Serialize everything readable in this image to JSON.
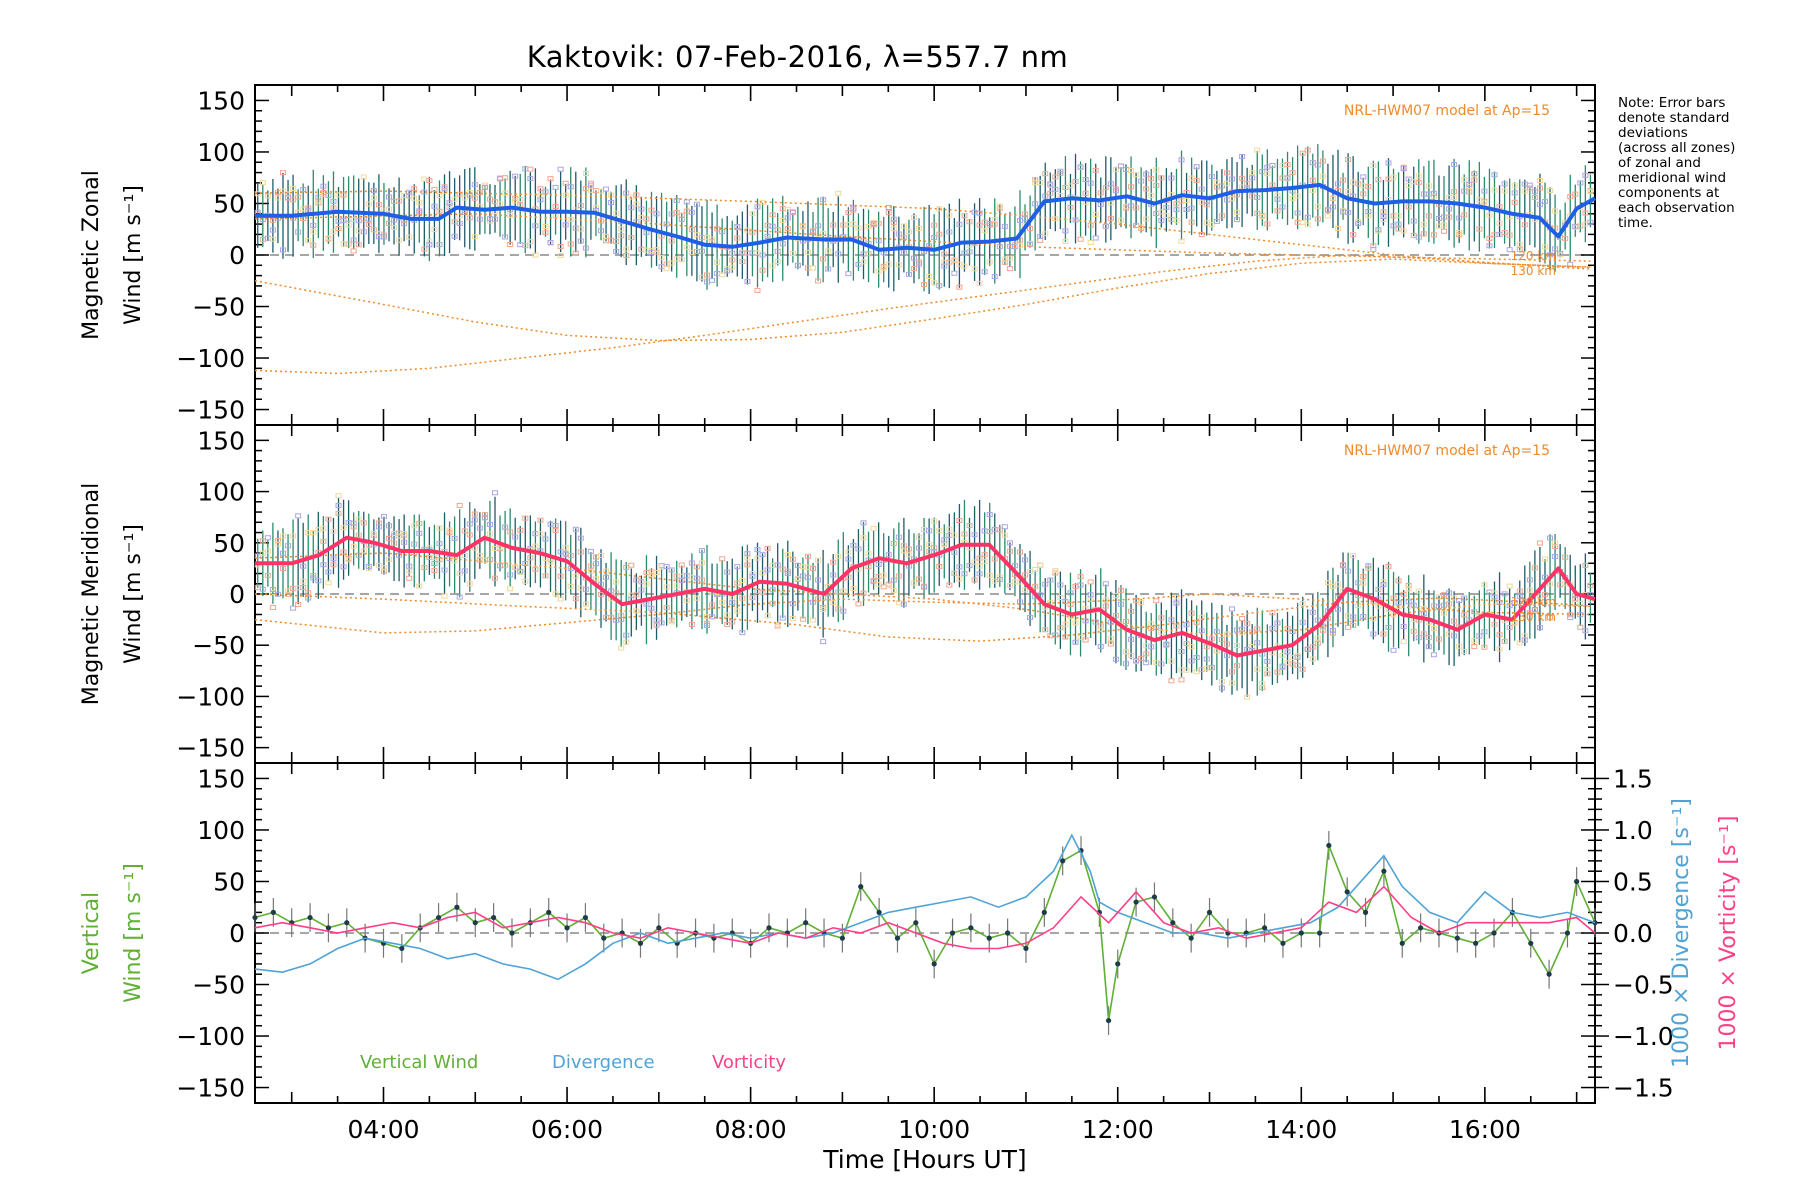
{
  "title": "Kaktovik: 07-Feb-2016, λ=557.7 nm",
  "note": [
    "Note: Error bars",
    "denote standard",
    "deviations",
    "(across all zones)",
    "of zonal and",
    "meridional wind",
    "components at",
    "each observation",
    "time."
  ],
  "colors": {
    "zonal": "#1f5ee6",
    "meridional": "#ff3366",
    "vertical": "#5fb035",
    "divergence": "#4fa3d6",
    "vorticity": "#ff3f86",
    "model": "#f08a2a",
    "zones": "#a9a6e6",
    "errorbar": "#1d5d6b"
  },
  "chart_data": [
    {
      "type": "line",
      "panel": "zonal",
      "ylabel_line1": "Magnetic Zonal",
      "ylabel_line2": "Wind [m s⁻¹]",
      "ylim": [
        -165,
        165
      ],
      "yticks": [
        150,
        100,
        50,
        0,
        -50,
        -100,
        -150
      ],
      "xlim": [
        2.6,
        17.2
      ],
      "model_label": "NRL-HWM07 model at Ap=15",
      "model_alt_labels": [
        "120 km",
        "130 km"
      ],
      "series": [
        {
          "key": "wind",
          "x": [
            2.6,
            3.0,
            3.5,
            4.0,
            4.3,
            4.6,
            4.8,
            5.1,
            5.4,
            5.7,
            6.0,
            6.3,
            6.6,
            6.9,
            7.2,
            7.5,
            7.8,
            8.1,
            8.4,
            8.8,
            9.1,
            9.4,
            9.7,
            10.0,
            10.3,
            10.6,
            10.9,
            11.2,
            11.5,
            11.8,
            12.1,
            12.4,
            12.7,
            13.0,
            13.3,
            13.6,
            13.9,
            14.2,
            14.5,
            14.8,
            15.1,
            15.4,
            15.7,
            16.0,
            16.3,
            16.6,
            16.8,
            17.0,
            17.2
          ],
          "y": [
            38,
            38,
            42,
            40,
            35,
            35,
            46,
            44,
            46,
            42,
            42,
            41,
            33,
            25,
            18,
            10,
            8,
            12,
            17,
            15,
            15,
            5,
            7,
            5,
            12,
            13,
            16,
            52,
            55,
            53,
            57,
            50,
            58,
            55,
            62,
            63,
            65,
            68,
            55,
            50,
            52,
            52,
            50,
            46,
            40,
            36,
            18,
            45,
            55
          ]
        },
        {
          "key": "model_upper",
          "x": [
            2.6,
            4.0,
            6.0,
            8.0,
            10.0,
            11.0,
            12.0,
            13.0,
            14.0,
            15.0,
            16.0,
            17.2
          ],
          "y": [
            60,
            62,
            58,
            52,
            45,
            38,
            30,
            20,
            10,
            0,
            -8,
            -12
          ]
        },
        {
          "key": "model_lower1",
          "x": [
            2.6,
            4.0,
            5.0,
            6.0,
            7.0,
            8.0,
            9.0,
            10.0,
            11.0,
            12.0,
            13.0,
            14.0,
            15.0,
            16.0,
            17.2
          ],
          "y": [
            -25,
            -48,
            -65,
            -78,
            -83,
            -82,
            -75,
            -62,
            -48,
            -32,
            -18,
            -8,
            -4,
            -8,
            -12
          ]
        },
        {
          "key": "model_lower2",
          "x": [
            2.6,
            3.5,
            4.5,
            5.5,
            6.5,
            7.5,
            8.5,
            9.5,
            10.5,
            11.5,
            12.5,
            13.5,
            14.5,
            15.5,
            16.5,
            17.2
          ],
          "y": [
            -112,
            -115,
            -110,
            -100,
            -90,
            -78,
            -65,
            -52,
            -40,
            -28,
            -16,
            -6,
            0,
            -4,
            -10,
            -14
          ]
        },
        {
          "key": "model_upper2",
          "x": [
            2.6,
            5.0,
            7.0,
            9.0,
            11.0,
            13.0,
            15.0,
            17.2
          ],
          "y": [
            35,
            40,
            30,
            18,
            8,
            2,
            -2,
            -6
          ]
        }
      ]
    },
    {
      "type": "line",
      "panel": "meridional",
      "ylabel_line1": "Magnetic Meridional",
      "ylabel_line2": "Wind [m s⁻¹]",
      "ylim": [
        -165,
        165
      ],
      "yticks": [
        150,
        100,
        50,
        0,
        -50,
        -100,
        -150
      ],
      "xlim": [
        2.6,
        17.2
      ],
      "model_label": "NRL-HWM07 model at Ap=15",
      "model_alt_labels": [
        "120 km",
        "130 km"
      ],
      "series": [
        {
          "key": "wind",
          "x": [
            2.6,
            3.0,
            3.3,
            3.6,
            3.9,
            4.2,
            4.5,
            4.8,
            5.1,
            5.4,
            5.7,
            6.0,
            6.3,
            6.6,
            6.9,
            7.2,
            7.5,
            7.8,
            8.1,
            8.4,
            8.8,
            9.1,
            9.4,
            9.7,
            10.0,
            10.3,
            10.6,
            10.9,
            11.2,
            11.5,
            11.8,
            12.1,
            12.4,
            12.7,
            13.0,
            13.3,
            13.6,
            13.9,
            14.2,
            14.5,
            14.8,
            15.1,
            15.4,
            15.7,
            16.0,
            16.3,
            16.6,
            16.8,
            17.0,
            17.2
          ],
          "y": [
            30,
            30,
            38,
            55,
            50,
            42,
            42,
            38,
            55,
            45,
            40,
            32,
            10,
            -10,
            -5,
            0,
            5,
            0,
            12,
            10,
            0,
            25,
            35,
            30,
            38,
            48,
            48,
            20,
            -10,
            -20,
            -15,
            -35,
            -45,
            -38,
            -48,
            -60,
            -55,
            -50,
            -30,
            5,
            -5,
            -20,
            -25,
            -35,
            -20,
            -25,
            5,
            25,
            0,
            -5
          ]
        },
        {
          "key": "model_upper",
          "x": [
            2.6,
            4.0,
            6.0,
            8.0,
            9.0,
            10.0,
            11.0,
            12.0,
            13.0,
            14.0,
            15.0,
            16.0,
            17.2
          ],
          "y": [
            35,
            40,
            25,
            5,
            0,
            -5,
            -15,
            -30,
            -40,
            -35,
            -20,
            -10,
            -12
          ]
        },
        {
          "key": "model_lower1",
          "x": [
            2.6,
            4.0,
            5.0,
            6.0,
            7.0,
            8.0,
            9.0,
            10.0,
            11.0,
            12.0,
            13.0,
            14.0,
            15.0,
            16.0,
            17.2
          ],
          "y": [
            -25,
            -38,
            -36,
            -28,
            -20,
            -10,
            -5,
            -8,
            -10,
            -6,
            0,
            -5,
            -12,
            -18,
            -20
          ]
        },
        {
          "key": "model_lower2",
          "x": [
            2.6,
            4.0,
            5.5,
            7.0,
            8.5,
            9.5,
            10.5,
            11.5,
            12.5,
            13.5,
            14.5,
            15.5,
            16.5,
            17.2
          ],
          "y": [
            0,
            -5,
            -12,
            -18,
            -30,
            -42,
            -46,
            -40,
            -30,
            -18,
            -8,
            -4,
            -8,
            -12
          ]
        }
      ]
    },
    {
      "type": "line",
      "panel": "vertical",
      "ylabel_line1": "Vertical",
      "ylabel_line2": "Wind [m s⁻¹]",
      "ylim": [
        -165,
        165
      ],
      "yticks": [
        150,
        100,
        50,
        0,
        -50,
        -100,
        -150
      ],
      "y2label_a": "1000 × Divergence [s⁻¹]",
      "y2label_b": "1000 × Vorticity [s⁻¹]",
      "y2lim": [
        -1.65,
        1.65
      ],
      "y2ticks": [
        "1.5",
        "1.0",
        "0.5",
        "0.0",
        "−0.5",
        "−1.0",
        "−1.5"
      ],
      "y2tick_values": [
        1.5,
        1.0,
        0.5,
        0.0,
        -0.5,
        -1.0,
        -1.5
      ],
      "xlim": [
        2.6,
        17.2
      ],
      "xticks": [
        "04:00",
        "06:00",
        "08:00",
        "10:00",
        "12:00",
        "14:00",
        "16:00"
      ],
      "xtick_values": [
        4,
        6,
        8,
        10,
        12,
        14,
        16
      ],
      "xlabel": "Time [Hours UT]",
      "legend": [
        "Vertical Wind",
        "Divergence",
        "Vorticity"
      ],
      "series": [
        {
          "key": "vertical",
          "name": "Vertical Wind",
          "x": [
            2.6,
            2.8,
            3.0,
            3.2,
            3.4,
            3.6,
            3.8,
            4.0,
            4.2,
            4.4,
            4.6,
            4.8,
            5.0,
            5.2,
            5.4,
            5.6,
            5.8,
            6.0,
            6.2,
            6.4,
            6.6,
            6.8,
            7.0,
            7.2,
            7.4,
            7.6,
            7.8,
            8.0,
            8.2,
            8.4,
            8.6,
            8.8,
            9.0,
            9.2,
            9.4,
            9.6,
            9.8,
            10.0,
            10.2,
            10.4,
            10.6,
            10.8,
            11.0,
            11.2,
            11.4,
            11.6,
            11.8,
            11.9,
            12.0,
            12.2,
            12.4,
            12.6,
            12.8,
            13.0,
            13.2,
            13.4,
            13.6,
            13.8,
            14.0,
            14.2,
            14.3,
            14.5,
            14.7,
            14.9,
            15.1,
            15.3,
            15.5,
            15.7,
            15.9,
            16.1,
            16.3,
            16.5,
            16.7,
            16.9,
            17.0,
            17.2
          ],
          "y": [
            15,
            20,
            10,
            15,
            5,
            10,
            -5,
            -10,
            -15,
            5,
            15,
            25,
            10,
            15,
            0,
            10,
            20,
            5,
            15,
            -5,
            0,
            -10,
            5,
            -10,
            0,
            -5,
            0,
            -10,
            5,
            0,
            10,
            0,
            -5,
            45,
            20,
            -5,
            10,
            -30,
            0,
            5,
            -5,
            0,
            -15,
            20,
            70,
            80,
            20,
            -85,
            -30,
            30,
            35,
            10,
            -5,
            20,
            0,
            0,
            5,
            -10,
            0,
            0,
            85,
            40,
            20,
            60,
            -10,
            5,
            0,
            -5,
            -10,
            0,
            20,
            -10,
            -40,
            0,
            50,
            10
          ]
        },
        {
          "key": "divergence",
          "name": "Divergence",
          "x": [
            2.6,
            2.9,
            3.2,
            3.5,
            3.8,
            4.1,
            4.4,
            4.7,
            5.0,
            5.3,
            5.6,
            5.9,
            6.2,
            6.5,
            6.8,
            7.1,
            7.4,
            7.7,
            8.0,
            8.3,
            8.6,
            8.9,
            9.2,
            9.5,
            9.8,
            10.1,
            10.4,
            10.7,
            11.0,
            11.3,
            11.5,
            11.7,
            11.8,
            12.0,
            12.3,
            12.6,
            12.9,
            13.2,
            13.5,
            13.8,
            14.1,
            14.4,
            14.7,
            14.9,
            15.1,
            15.4,
            15.7,
            16.0,
            16.3,
            16.6,
            16.9,
            17.2
          ],
          "y": [
            -0.35,
            -0.38,
            -0.3,
            -0.15,
            -0.05,
            -0.1,
            -0.15,
            -0.25,
            -0.2,
            -0.3,
            -0.35,
            -0.45,
            -0.3,
            -0.1,
            0.0,
            -0.1,
            -0.05,
            0.0,
            -0.05,
            0.0,
            -0.05,
            0.0,
            0.1,
            0.2,
            0.25,
            0.3,
            0.35,
            0.25,
            0.35,
            0.6,
            0.95,
            0.6,
            0.3,
            0.2,
            0.1,
            0.0,
            0.0,
            -0.05,
            0.0,
            0.05,
            0.1,
            0.25,
            0.55,
            0.75,
            0.45,
            0.2,
            0.1,
            0.4,
            0.2,
            0.15,
            0.2,
            0.1
          ]
        },
        {
          "key": "vorticity",
          "name": "Vorticity",
          "x": [
            2.6,
            2.9,
            3.2,
            3.5,
            3.8,
            4.1,
            4.4,
            4.7,
            5.0,
            5.3,
            5.6,
            5.9,
            6.2,
            6.5,
            6.8,
            7.1,
            7.4,
            7.7,
            8.0,
            8.3,
            8.6,
            8.9,
            9.2,
            9.5,
            9.8,
            10.1,
            10.4,
            10.7,
            11.0,
            11.3,
            11.6,
            11.9,
            12.2,
            12.5,
            12.8,
            13.1,
            13.4,
            13.7,
            14.0,
            14.3,
            14.6,
            14.9,
            15.2,
            15.5,
            15.8,
            16.1,
            16.4,
            16.7,
            17.0,
            17.2
          ],
          "y": [
            0.05,
            0.1,
            0.05,
            0.0,
            0.05,
            0.1,
            0.05,
            0.15,
            0.2,
            0.05,
            0.1,
            0.15,
            0.1,
            0.0,
            -0.05,
            0.05,
            0.0,
            -0.05,
            -0.1,
            0.0,
            -0.05,
            0.05,
            0.0,
            0.1,
            0.0,
            -0.1,
            -0.15,
            -0.15,
            -0.1,
            0.05,
            0.35,
            0.1,
            0.4,
            0.1,
            0.0,
            0.05,
            -0.05,
            0.0,
            0.05,
            0.3,
            0.2,
            0.45,
            0.15,
            0.0,
            0.1,
            0.1,
            0.1,
            0.1,
            0.15,
            0.0
          ]
        }
      ]
    }
  ]
}
